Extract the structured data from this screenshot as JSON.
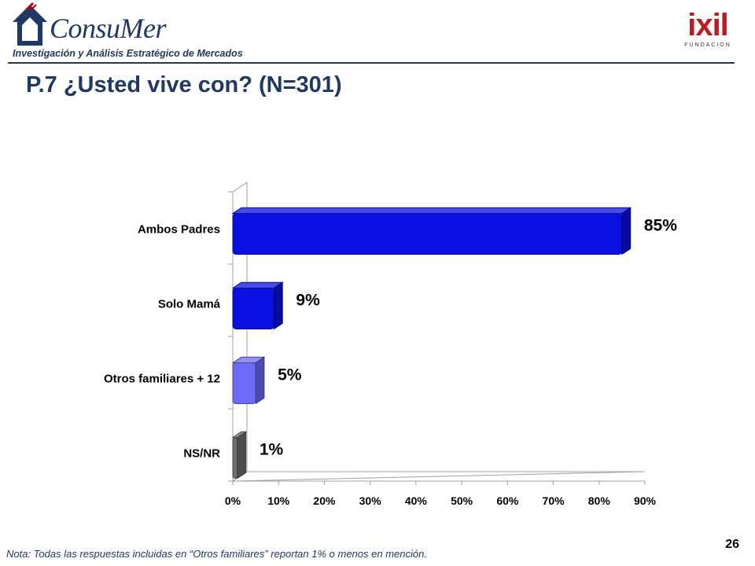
{
  "header": {
    "brand": "ConsuMer",
    "tagline": "Investigación y Análisis Estratégico de Mercados",
    "partner_logo_text": "ixil",
    "partner_logo_sub": "FUNDACIÓN"
  },
  "title": "P.7 ¿Usted vive con? (N=301)",
  "chart_data": {
    "type": "bar",
    "orientation": "horizontal",
    "categories": [
      "Ambos Padres",
      "Solo Mamá",
      "Otros familiares + 12",
      "NS/NR"
    ],
    "values": [
      85,
      9,
      5,
      1
    ],
    "value_labels": [
      "85%",
      "9%",
      "5%",
      "1%"
    ],
    "xlim": [
      0,
      90
    ],
    "x_ticks": [
      "0%",
      "10%",
      "20%",
      "30%",
      "40%",
      "50%",
      "60%",
      "70%",
      "80%",
      "90%"
    ],
    "grid": false,
    "bar_colors": [
      "#0a10e0",
      "#0a10e0",
      "#6b6bf5",
      "#6e6e6e"
    ]
  },
  "footer": {
    "note": "Nota: Todas las respuestas incluidas en “Otros familiares” reportan 1% o menos en mención.",
    "page_number": "26"
  }
}
